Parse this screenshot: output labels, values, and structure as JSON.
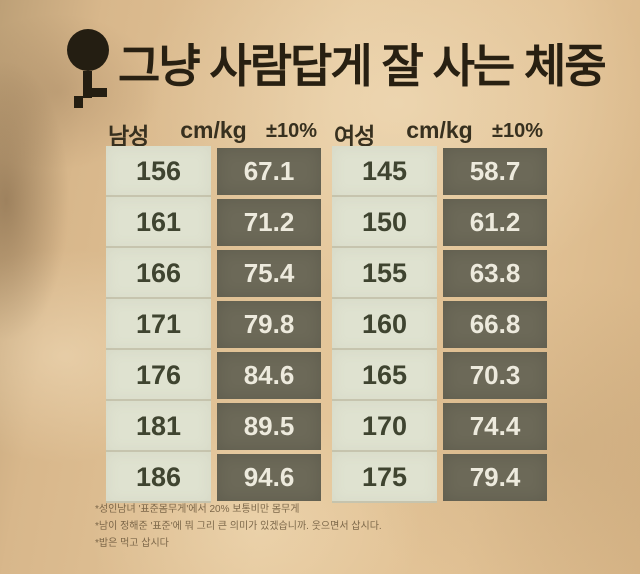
{
  "title": {
    "text": "그냥 사람답게 잘 사는 체중"
  },
  "tables": [
    {
      "gender": "남성",
      "unit_header": "cm/kg",
      "tolerance_header": "±10%",
      "rows": [
        {
          "height": "156",
          "weight": "67.1"
        },
        {
          "height": "161",
          "weight": "71.2"
        },
        {
          "height": "166",
          "weight": "75.4"
        },
        {
          "height": "171",
          "weight": "79.8"
        },
        {
          "height": "176",
          "weight": "84.6"
        },
        {
          "height": "181",
          "weight": "89.5"
        },
        {
          "height": "186",
          "weight": "94.6"
        }
      ]
    },
    {
      "gender": "여성",
      "unit_header": "cm/kg",
      "tolerance_header": "±10%",
      "rows": [
        {
          "height": "145",
          "weight": "58.7"
        },
        {
          "height": "150",
          "weight": "61.2"
        },
        {
          "height": "155",
          "weight": "63.8"
        },
        {
          "height": "160",
          "weight": "66.8"
        },
        {
          "height": "165",
          "weight": "70.3"
        },
        {
          "height": "170",
          "weight": "74.4"
        },
        {
          "height": "175",
          "weight": "79.4"
        }
      ]
    }
  ],
  "footnotes": [
    "*성인남녀 '표준몸무게'에서 20% 보통비만 몸무게",
    "*남이 정해준 '표준'에 뭐 그리 큰 의미가 있겠습니까. 웃으면서 삽시다.",
    "*밥은 먹고 삽시다"
  ],
  "colors": {
    "background": "#ddbc90",
    "light_cell": "#dfe2d0",
    "dark_cell": "#6c6958",
    "title_text": "#282012",
    "height_text": "#3f4430",
    "weight_text": "#edeadd"
  },
  "chart_data": {
    "type": "table",
    "title": "그냥 사람답게 잘 사는 체중",
    "tables": [
      {
        "group": "남성",
        "columns": [
          "cm/kg",
          "±10%"
        ],
        "rows": [
          [
            156,
            67.1
          ],
          [
            161,
            71.2
          ],
          [
            166,
            75.4
          ],
          [
            171,
            79.8
          ],
          [
            176,
            84.6
          ],
          [
            181,
            89.5
          ],
          [
            186,
            94.6
          ]
        ]
      },
      {
        "group": "여성",
        "columns": [
          "cm/kg",
          "±10%"
        ],
        "rows": [
          [
            145,
            58.7
          ],
          [
            150,
            61.2
          ],
          [
            155,
            63.8
          ],
          [
            160,
            66.8
          ],
          [
            165,
            70.3
          ],
          [
            170,
            74.4
          ],
          [
            175,
            79.4
          ]
        ]
      }
    ]
  }
}
